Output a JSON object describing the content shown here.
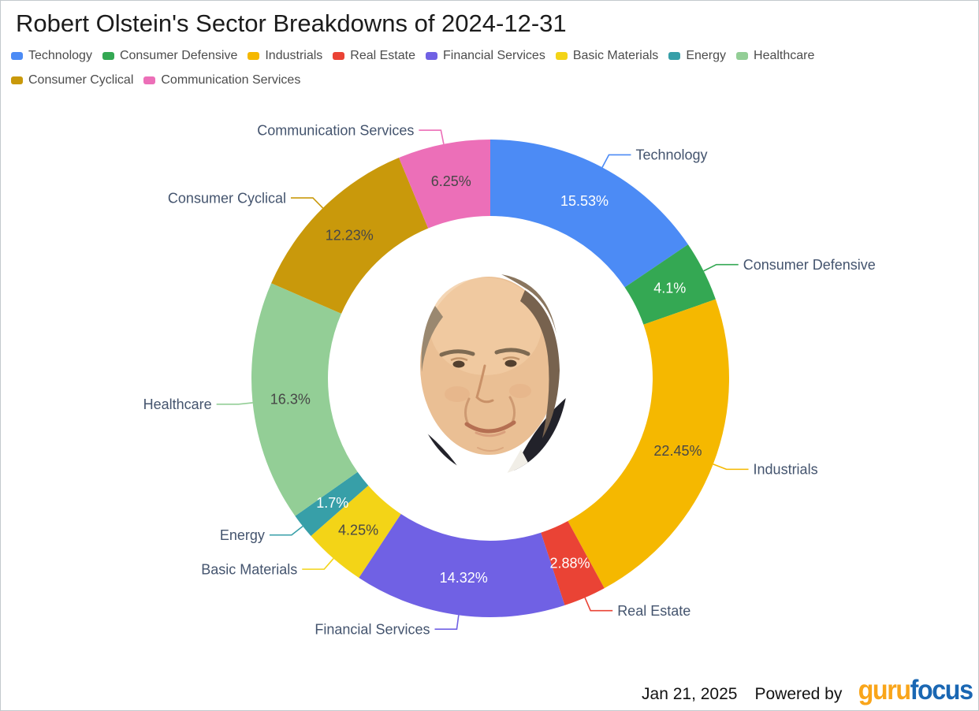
{
  "title": "Robert Olstein's Sector Breakdowns of 2024-12-31",
  "chart_data": {
    "type": "pie",
    "donut": true,
    "title": "Robert Olstein's Sector Breakdowns of 2024-12-31",
    "legend_position": "top",
    "start_angle": "12-o-clock-clockwise",
    "inner_radius_ratio": 0.68,
    "center_image": "portrait of Robert Olstein",
    "callout_label_color": "#44546E",
    "slices": [
      {
        "label": "Technology",
        "value": 15.53,
        "display": "15.53%",
        "color": "#4C8BF5",
        "value_text_color": "#ffffff"
      },
      {
        "label": "Consumer Defensive",
        "value": 4.1,
        "display": "4.1%",
        "color": "#34A853",
        "value_text_color": "#ffffff"
      },
      {
        "label": "Industrials",
        "value": 22.45,
        "display": "22.45%",
        "color": "#F5B800",
        "value_text_color": "#474747"
      },
      {
        "label": "Real Estate",
        "value": 2.88,
        "display": "2.88%",
        "color": "#EA4335",
        "value_text_color": "#ffffff"
      },
      {
        "label": "Financial Services",
        "value": 14.32,
        "display": "14.32%",
        "color": "#7061E4",
        "value_text_color": "#ffffff"
      },
      {
        "label": "Basic Materials",
        "value": 4.25,
        "display": "4.25%",
        "color": "#F3D417",
        "value_text_color": "#474747"
      },
      {
        "label": "Energy",
        "value": 1.7,
        "display": "1.7%",
        "color": "#379FA8",
        "value_text_color": "#ffffff"
      },
      {
        "label": "Healthcare",
        "value": 16.3,
        "display": "16.3%",
        "color": "#93CE96",
        "value_text_color": "#474747"
      },
      {
        "label": "Consumer Cyclical",
        "value": 12.23,
        "display": "12.23%",
        "color": "#C9990B",
        "value_text_color": "#474747"
      },
      {
        "label": "Communication Services",
        "value": 6.25,
        "display": "6.25%",
        "color": "#EC6FB8",
        "value_text_color": "#474747"
      }
    ]
  },
  "footer": {
    "date": "Jan 21, 2025",
    "powered_by": "Powered by",
    "logo": {
      "part1": "guru",
      "part2": "focus",
      "part1_color": "#F9A51A",
      "part2_color": "#1A67B3"
    }
  }
}
